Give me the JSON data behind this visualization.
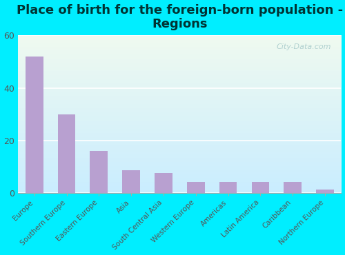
{
  "title": "Place of birth for the foreign-born population -\nRegions",
  "categories": [
    "Europe",
    "Southern Europe",
    "Eastern Europe",
    "Asia",
    "South Central Asia",
    "Western Europe",
    "Americas",
    "Latin America",
    "Caribbean",
    "Northern Europe"
  ],
  "values": [
    52,
    30,
    16,
    8.5,
    7.5,
    4,
    4,
    4,
    4,
    1.2
  ],
  "bar_color": "#b8a0d0",
  "ylim": [
    0,
    60
  ],
  "yticks": [
    0,
    20,
    40,
    60
  ],
  "background_outer": "#00eeff",
  "bg_color_topleft": "#e0f5e0",
  "bg_color_bottomleft": "#a8eedd",
  "bg_color_topright": "#f0faf0",
  "bg_color_bottomright": "#c0f0e8",
  "title_fontsize": 13,
  "title_color": "#003333",
  "tick_label_fontsize": 7.5,
  "tick_color": "#555555",
  "watermark": "City-Data.com",
  "watermark_color": "#aacccc"
}
